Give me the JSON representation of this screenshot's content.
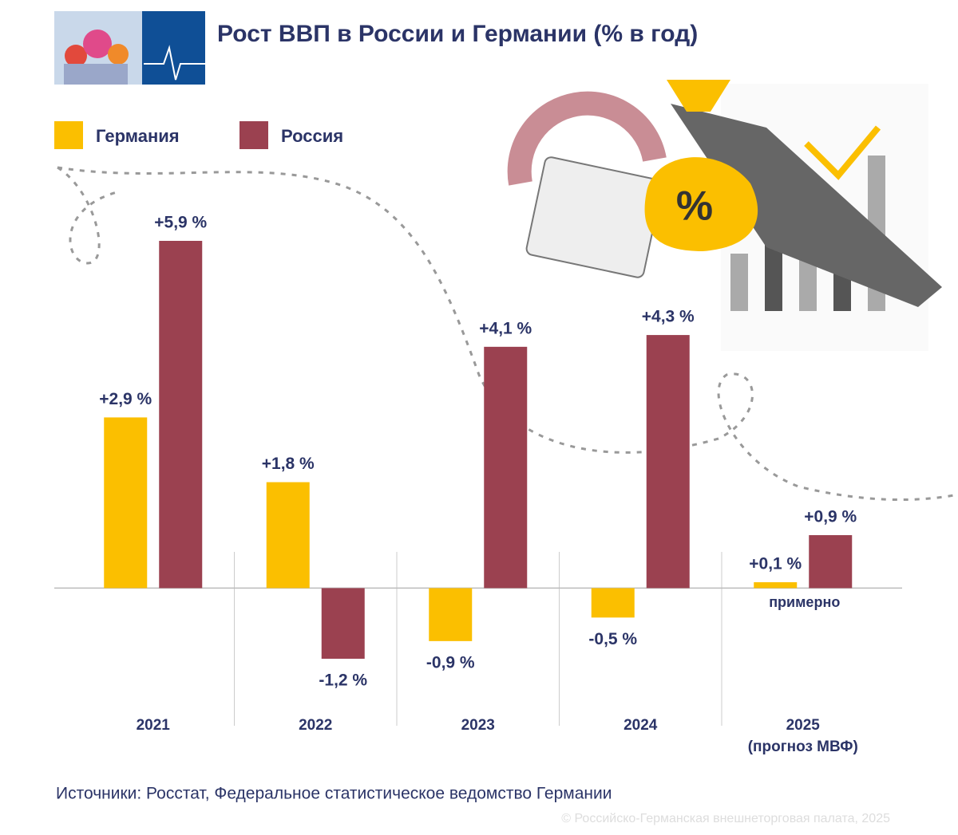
{
  "chart_data": {
    "type": "bar",
    "title": "Рост ВВП в России и Германии (% в год)",
    "categories": [
      "2021",
      "2022",
      "2023",
      "2024",
      "2025"
    ],
    "category_note": "(прогноз МВФ)",
    "series": [
      {
        "name": "Германия",
        "color": "#fbbf00",
        "values": [
          2.9,
          1.8,
          -0.9,
          -0.5,
          0.1
        ],
        "value_labels": [
          "+2,9 %",
          "+1,8 %",
          "-0,9 %",
          "-0,5 %",
          "+0,1 %"
        ]
      },
      {
        "name": "Россия",
        "color": "#9b4150",
        "values": [
          5.9,
          -1.2,
          4.1,
          4.3,
          0.9
        ],
        "value_labels": [
          "+5,9 %",
          "-1,2 %",
          "+4,1 %",
          "+4,3 %",
          "+0,9 %"
        ]
      }
    ],
    "annotation": "примерно",
    "source": "Источники: Росстат, Федеральное статистическое ведомство Германии",
    "copyright": "© Российско-Германская внешнеторговая палата, 2025"
  }
}
